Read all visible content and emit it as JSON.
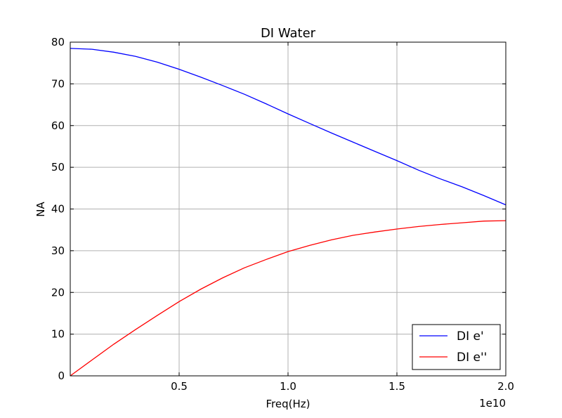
{
  "chart_data": {
    "type": "line",
    "title": "DI Water",
    "xlabel": "Freq(Hz)",
    "ylabel": "NA",
    "x_offset_label": "1e10",
    "xlim": [
      0,
      2.0
    ],
    "ylim": [
      0,
      80
    ],
    "x_ticks": [
      {
        "value": 0.5,
        "label": "0.5"
      },
      {
        "value": 1.0,
        "label": "1.0"
      },
      {
        "value": 1.5,
        "label": "1.5"
      },
      {
        "value": 2.0,
        "label": "2.0"
      }
    ],
    "y_ticks": [
      {
        "value": 0,
        "label": "0"
      },
      {
        "value": 10,
        "label": "10"
      },
      {
        "value": 20,
        "label": "20"
      },
      {
        "value": 30,
        "label": "30"
      },
      {
        "value": 40,
        "label": "40"
      },
      {
        "value": 50,
        "label": "50"
      },
      {
        "value": 60,
        "label": "60"
      },
      {
        "value": 70,
        "label": "70"
      },
      {
        "value": 80,
        "label": "80"
      }
    ],
    "grid": true,
    "legend_position": "bottom-right",
    "series": [
      {
        "name": "DI e'",
        "color": "#0000ff",
        "x": [
          0.0,
          0.1,
          0.2,
          0.3,
          0.4,
          0.5,
          0.6,
          0.7,
          0.8,
          0.9,
          1.0,
          1.1,
          1.2,
          1.3,
          1.4,
          1.5,
          1.6,
          1.7,
          1.8,
          1.9,
          2.0
        ],
        "y": [
          78.5,
          78.3,
          77.6,
          76.6,
          75.2,
          73.5,
          71.6,
          69.6,
          67.5,
          65.2,
          62.8,
          60.5,
          58.2,
          56.0,
          53.8,
          51.6,
          49.3,
          47.2,
          45.3,
          43.2,
          41.0
        ]
      },
      {
        "name": "DI e''",
        "color": "#ff0000",
        "x": [
          0.0,
          0.1,
          0.2,
          0.3,
          0.4,
          0.5,
          0.6,
          0.7,
          0.8,
          0.9,
          1.0,
          1.1,
          1.2,
          1.3,
          1.4,
          1.5,
          1.6,
          1.7,
          1.8,
          1.9,
          2.0
        ],
        "y": [
          0.0,
          3.8,
          7.6,
          11.1,
          14.5,
          17.8,
          20.8,
          23.5,
          25.9,
          27.9,
          29.8,
          31.3,
          32.6,
          33.7,
          34.5,
          35.2,
          35.8,
          36.3,
          36.7,
          37.1,
          37.2
        ]
      }
    ]
  }
}
